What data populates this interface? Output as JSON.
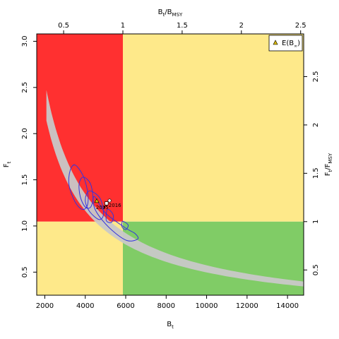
{
  "chart_data": {
    "type": "scatter",
    "x_bottom": {
      "label": "B",
      "label_sub": "t",
      "lim": [
        1600,
        14800
      ],
      "ticks": [
        2000,
        4000,
        6000,
        8000,
        10000,
        12000,
        14000
      ]
    },
    "y_left": {
      "label": "F",
      "label_sub": "t",
      "lim": [
        0.25,
        3.08
      ],
      "ticks": [
        0.5,
        1.0,
        1.5,
        2.0,
        2.5,
        3.0
      ],
      "tick_labels": [
        "0.5",
        "1.0",
        "1.5",
        "2.0",
        "2.5",
        "3.0"
      ]
    },
    "x_top": {
      "label": "B",
      "label_sub": "t",
      "label_sep": "/",
      "label2": "B",
      "label2_sub": "MSY",
      "ticks": [
        0.5,
        1,
        1.5,
        2,
        2.5
      ],
      "tick_labels": [
        "0.5",
        "1",
        "1.5",
        "2",
        "2.5"
      ]
    },
    "y_right": {
      "label": "F",
      "label_sub": "t",
      "label_sep": "/",
      "label2": "F",
      "label2_sub": "MSY",
      "ticks": [
        0.5,
        1,
        1.5,
        2,
        2.5
      ],
      "tick_labels": [
        "0.5",
        "1",
        "1.5",
        "2",
        "2.5"
      ]
    },
    "reference": {
      "Bmsy": 5860,
      "Fmsy": 1.047
    },
    "quadrant_colors": {
      "red": "#ff3030",
      "yellow": "#fee98a",
      "green": "#80cc66",
      "band": "#c8c8c8",
      "contour": "#3333dd"
    },
    "mean_point": {
      "B": 4570,
      "F": 1.27,
      "color": "#d8b700"
    },
    "points": [
      {
        "year": "2016",
        "B": 5050,
        "F": 1.245,
        "shape": "square"
      },
      {
        "year": "",
        "B": 5200,
        "F": 1.275,
        "shape": "circle"
      },
      {
        "year": "2015",
        "B": 4950,
        "F": 1.205,
        "shape": "dot"
      }
    ],
    "year_labels": [
      "2016",
      "2015"
    ],
    "contours": [
      [
        [
          3500,
          1.66
        ],
        [
          3900,
          1.54
        ],
        [
          4120,
          1.36
        ],
        [
          4100,
          1.22
        ],
        [
          3850,
          1.18
        ],
        [
          3500,
          1.26
        ],
        [
          3200,
          1.44
        ],
        [
          3250,
          1.6
        ]
      ],
      [
        [
          3900,
          1.53
        ],
        [
          4250,
          1.46
        ],
        [
          4380,
          1.3
        ],
        [
          4250,
          1.2
        ],
        [
          3980,
          1.21
        ],
        [
          3750,
          1.32
        ],
        [
          3700,
          1.46
        ]
      ],
      [
        [
          4200,
          1.38
        ],
        [
          4730,
          1.3
        ],
        [
          4900,
          1.13
        ],
        [
          4680,
          1.07
        ],
        [
          4200,
          1.16
        ],
        [
          4000,
          1.28
        ]
      ],
      [
        [
          4450,
          1.32
        ],
        [
          5000,
          1.14
        ],
        [
          5980,
          0.98
        ],
        [
          6450,
          0.92
        ],
        [
          6600,
          0.86
        ],
        [
          6100,
          0.84
        ],
        [
          5500,
          0.92
        ],
        [
          4850,
          1.06
        ],
        [
          4450,
          1.2
        ]
      ],
      [
        [
          5100,
          1.18
        ],
        [
          5380,
          1.12
        ],
        [
          5300,
          1.04
        ],
        [
          5040,
          1.06
        ]
      ],
      [
        [
          5850,
          1.05
        ],
        [
          6120,
          1.01
        ],
        [
          6000,
          0.96
        ],
        [
          5820,
          0.99
        ]
      ]
    ],
    "legend": {
      "entries": [
        "E(B",
        "∞",
        ")"
      ],
      "position": "top-right"
    },
    "band": {
      "x_start": 2080,
      "x_end": 14800,
      "center_const": 4860,
      "exponent": 0.93,
      "halfwidth": 0.072
    }
  }
}
